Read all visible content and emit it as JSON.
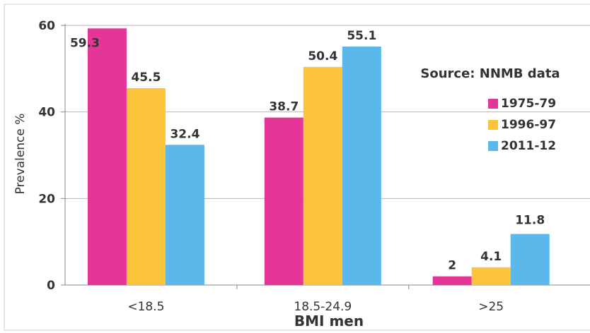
{
  "chart_data": {
    "type": "bar",
    "title": "",
    "xlabel": "BMI men",
    "ylabel": "Prevalence %",
    "ylim": [
      0,
      60
    ],
    "yticks": [
      0,
      20,
      40,
      60
    ],
    "grid": true,
    "legend_position": "right",
    "categories": [
      "<18.5",
      "18.5-24.9",
      ">25"
    ],
    "series": [
      {
        "name": "1975-79",
        "color": "#e43598",
        "values": [
          59.3,
          38.7,
          2
        ],
        "labels": [
          "59.3",
          "38.7",
          "2"
        ]
      },
      {
        "name": "1996-97",
        "color": "#fbc43a",
        "values": [
          45.5,
          50.4,
          4.1
        ],
        "labels": [
          "45.5",
          "50.4",
          "4.1"
        ]
      },
      {
        "name": "2011-12",
        "color": "#5ab8ea",
        "values": [
          32.4,
          55.1,
          11.8
        ],
        "labels": [
          "32.4",
          "55.1",
          "11.8"
        ]
      }
    ],
    "annotation": "Source: NNMB data"
  }
}
